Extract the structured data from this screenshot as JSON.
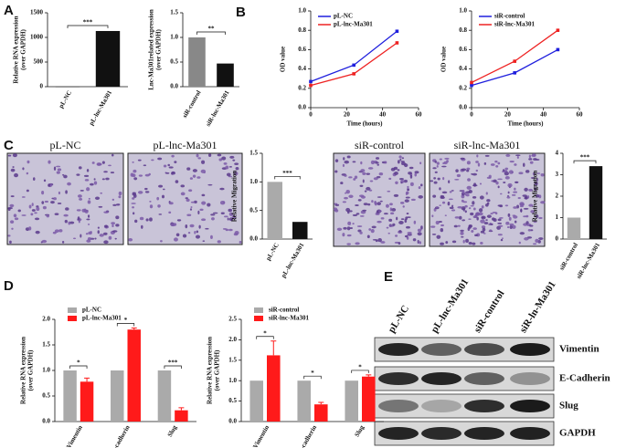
{
  "panels": {
    "a": "A",
    "b": "B",
    "c": "C",
    "d": "D",
    "e": "E"
  },
  "images": {
    "titles": [
      "pL-NC",
      "pL-lnc-Ma301",
      "siR-control",
      "siR-lnc-Ma301"
    ]
  },
  "blot": {
    "lanes": [
      "pL-NC",
      "pL-lnc-Ma301",
      "siR-control",
      "siR-ln-Ma301"
    ],
    "rows": [
      "Vimentin",
      "E-Cadherin",
      "Slug",
      "GAPDH"
    ]
  },
  "chart_data": [
    {
      "type": "bar",
      "ylabel": [
        "Relative RNA expression",
        "(over GAPDH)"
      ],
      "categories": [
        "pL-NC",
        "pL-lnc-Ma301"
      ],
      "values": [
        1,
        1130
      ],
      "colors": [
        "#111111",
        "#111111"
      ],
      "ylim": [
        0,
        1500
      ],
      "yticks": [
        0,
        500,
        1000,
        1500
      ],
      "annotation": "***"
    },
    {
      "type": "bar",
      "ylabel": [
        "Lnc-Ma301related expression",
        "(over GAPDH)"
      ],
      "categories": [
        "siR-control",
        "siR-lnc-Ma301"
      ],
      "values": [
        1.0,
        0.47
      ],
      "colors": [
        "#888888",
        "#111111"
      ],
      "ylim": [
        0,
        1.5
      ],
      "yticks": [
        {
          "value": 0,
          "label": "0.0"
        },
        0.5,
        {
          "value": 1,
          "label": "1.0"
        },
        1.5
      ],
      "annotation": "**"
    },
    {
      "type": "line",
      "ylabel": [
        "OD value"
      ],
      "xlabel": "Time (hours)",
      "x": [
        0,
        24,
        48
      ],
      "series": [
        {
          "name": "pL-NC",
          "color": "#1f1fdd",
          "values": [
            0.27,
            0.44,
            0.79
          ]
        },
        {
          "name": "pL-lnc-Ma301",
          "color": "#ee2222",
          "values": [
            0.23,
            0.35,
            0.67
          ]
        }
      ],
      "xlim": [
        0,
        60
      ],
      "xticks": [
        0,
        20,
        40,
        60
      ],
      "ylim": [
        0,
        1.0
      ],
      "yticks": [
        {
          "value": 0,
          "label": "0.0"
        },
        0.2,
        0.4,
        0.6,
        0.8,
        {
          "value": 1,
          "label": "1.0"
        }
      ]
    },
    {
      "type": "line",
      "ylabel": [
        "OD value"
      ],
      "xlabel": "Time (hours)",
      "x": [
        0,
        24,
        48
      ],
      "series": [
        {
          "name": "siR-control",
          "color": "#1f1fdd",
          "values": [
            0.23,
            0.36,
            0.6
          ]
        },
        {
          "name": "siR-lnc-Ma301",
          "color": "#ee2222",
          "values": [
            0.26,
            0.48,
            0.8
          ]
        }
      ],
      "xlim": [
        0,
        60
      ],
      "xticks": [
        0,
        20,
        40,
        60
      ],
      "ylim": [
        0,
        1.0
      ],
      "yticks": [
        {
          "value": 0,
          "label": "0.0"
        },
        0.2,
        0.4,
        0.6,
        0.8,
        {
          "value": 1,
          "label": "1.0"
        }
      ]
    },
    {
      "type": "bar",
      "ylabel": [
        "Relative Migration"
      ],
      "categories": [
        "pL-NC",
        "pL-lnc-Ma301"
      ],
      "values": [
        1.0,
        0.3
      ],
      "colors": [
        "#aaaaaa",
        "#111111"
      ],
      "ylim": [
        0,
        1.5
      ],
      "yticks": [
        {
          "value": 0,
          "label": "0.0"
        },
        0.5,
        {
          "value": 1,
          "label": "1.0"
        },
        1.5
      ],
      "annotation": "***"
    },
    {
      "type": "bar",
      "ylabel": [
        "Relative Migration"
      ],
      "categories": [
        "siR-control",
        "siR-lnc-Ma301"
      ],
      "values": [
        1.0,
        3.4
      ],
      "colors": [
        "#aaaaaa",
        "#111111"
      ],
      "ylim": [
        0,
        4
      ],
      "yticks": [
        0,
        1,
        2,
        3,
        4
      ],
      "annotation": "***"
    },
    {
      "type": "grouped_bar",
      "ylabel": [
        "Relative RNA expression",
        "(over GAPDH)"
      ],
      "categories": [
        "Vimentin",
        "E-cadherin",
        "Slug"
      ],
      "series": [
        {
          "name": "pL-NC",
          "color": "#aaaaaa",
          "values": [
            1,
            1,
            1
          ]
        },
        {
          "name": "pL-lnc-Ma301",
          "color": "#ff1a1a",
          "values": [
            0.78,
            1.8,
            0.22
          ],
          "errors": [
            0.07,
            0.03,
            0.05
          ]
        }
      ],
      "ylim": [
        0,
        2.0
      ],
      "yticks": [
        {
          "value": 0,
          "label": "0.0"
        },
        0.5,
        {
          "value": 1,
          "label": "1.0"
        },
        1.5,
        {
          "value": 2,
          "label": "2.0"
        }
      ],
      "annotations": [
        "*",
        "*",
        "***"
      ]
    },
    {
      "type": "grouped_bar",
      "ylabel": [
        "Relative RNA expression",
        "(over GAPDH)"
      ],
      "categories": [
        "Vimentin",
        "E-cadherin",
        "Slug"
      ],
      "series": [
        {
          "name": "siR-control",
          "color": "#aaaaaa",
          "values": [
            1,
            1,
            1
          ]
        },
        {
          "name": "siR-lnc-Ma301",
          "color": "#ff1a1a",
          "values": [
            1.62,
            0.42,
            1.1
          ],
          "errors": [
            0.35,
            0.05,
            0.04
          ]
        }
      ],
      "ylim": [
        0,
        2.5
      ],
      "yticks": [
        {
          "value": 0,
          "label": "0.0"
        },
        0.5,
        {
          "value": 1,
          "label": "1.0"
        },
        1.5,
        {
          "value": 2,
          "label": "2.0"
        },
        2.5
      ],
      "annotations": [
        "*",
        "*",
        "*"
      ]
    }
  ]
}
